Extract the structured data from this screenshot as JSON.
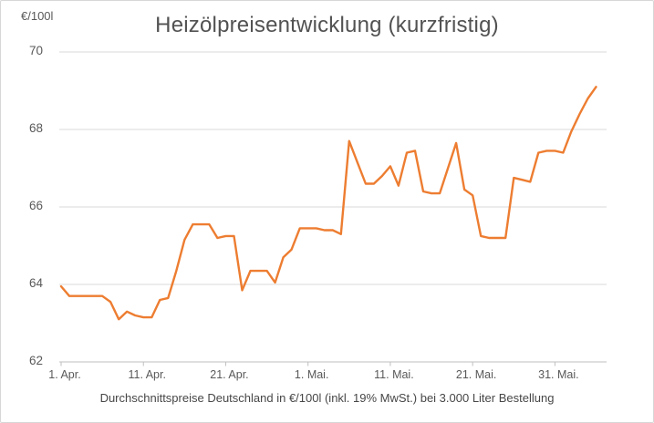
{
  "chart": {
    "title": "Heizölpreisentwicklung (kurzfristig)",
    "unit": "€/100l",
    "footer": "Durchschnittspreise Deutschland in €/100l (inkl. 19% MwSt.) bei 3.000 Liter Bestellung",
    "colors": {
      "line": "#ED7D31",
      "gridline": "#D9D9D9",
      "axis_line": "#BFBFBF",
      "text": "#595959"
    }
  },
  "chart_data": {
    "type": "line",
    "title": "Heizölpreisentwicklung (kurzfristig)",
    "xlabel": "",
    "ylabel": "€/100l",
    "ylim": [
      62,
      70
    ],
    "y_ticks": [
      62,
      64,
      66,
      68,
      70
    ],
    "x_tick_labels": [
      "1. Apr.",
      "11. Apr.",
      "21. Apr.",
      "1. Mai.",
      "11. Mai.",
      "21. Mai.",
      "31. Mai."
    ],
    "x_tick_indices": [
      0,
      10,
      20,
      30,
      40,
      50,
      60
    ],
    "grid": "horizontal",
    "legend": "none",
    "series": [
      {
        "dates": [
          "1. Apr.",
          "2. Apr.",
          "3. Apr.",
          "4. Apr.",
          "5. Apr.",
          "6. Apr.",
          "7. Apr.",
          "8. Apr.",
          "9. Apr.",
          "10. Apr.",
          "11. Apr.",
          "12. Apr.",
          "13. Apr.",
          "14. Apr.",
          "15. Apr.",
          "16. Apr.",
          "17. Apr.",
          "18. Apr.",
          "19. Apr.",
          "20. Apr.",
          "21. Apr.",
          "22. Apr.",
          "23. Apr.",
          "24. Apr.",
          "25. Apr.",
          "26. Apr.",
          "27. Apr.",
          "28. Apr.",
          "29. Apr.",
          "30. Apr.",
          "1. Mai.",
          "2. Mai.",
          "3. Mai.",
          "4. Mai.",
          "5. Mai.",
          "6. Mai.",
          "7. Mai.",
          "8. Mai.",
          "9. Mai.",
          "10. Mai.",
          "11. Mai.",
          "12. Mai.",
          "13. Mai.",
          "14. Mai.",
          "15. Mai.",
          "16. Mai.",
          "17. Mai.",
          "18. Mai.",
          "19. Mai.",
          "20. Mai.",
          "21. Mai.",
          "22. Mai.",
          "23. Mai.",
          "24. Mai.",
          "25. Mai.",
          "26. Mai.",
          "27. Mai.",
          "28. Mai.",
          "29. Mai.",
          "30. Mai.",
          "31. Mai.",
          "1. Jun.",
          "2. Jun.",
          "3. Jun.",
          "4. Jun.",
          "5. Jun."
        ],
        "values": [
          63.95,
          63.7,
          63.7,
          63.7,
          63.7,
          63.7,
          63.55,
          63.1,
          63.3,
          63.2,
          63.15,
          63.15,
          63.6,
          63.65,
          64.35,
          65.15,
          65.55,
          65.55,
          65.55,
          65.2,
          65.25,
          65.25,
          63.85,
          64.35,
          64.35,
          64.35,
          64.05,
          64.7,
          64.9,
          65.45,
          65.45,
          65.45,
          65.4,
          65.4,
          65.3,
          67.7,
          67.15,
          66.6,
          66.6,
          66.8,
          67.05,
          66.55,
          67.4,
          67.45,
          66.4,
          66.35,
          66.35,
          67.0,
          67.65,
          66.45,
          66.3,
          65.25,
          65.2,
          65.2,
          65.2,
          66.75,
          66.7,
          66.65,
          67.4,
          67.45,
          67.45,
          67.4,
          67.95,
          68.4,
          68.8,
          69.1
        ]
      }
    ]
  }
}
